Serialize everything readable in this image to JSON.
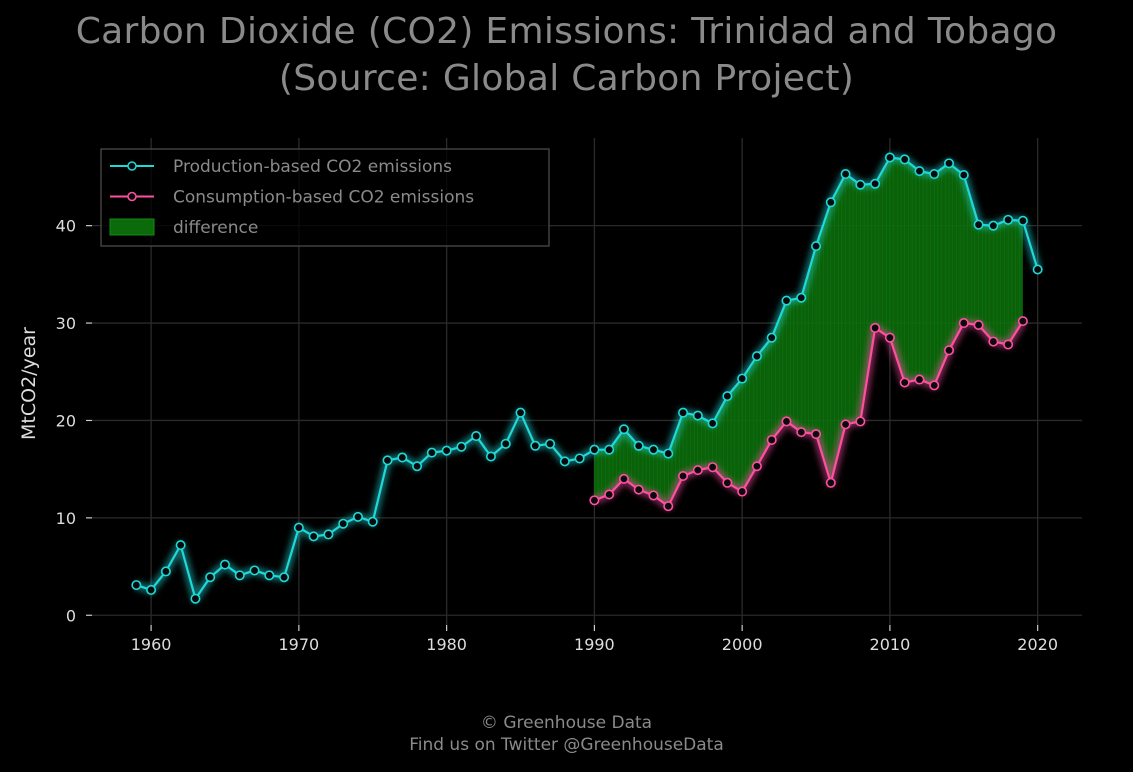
{
  "title_line1": "Carbon Dioxide (CO2) Emissions: Trinidad and Tobago",
  "title_line2": "(Source: Global Carbon Project)",
  "footer_line1": "© Greenhouse Data",
  "footer_line2": "Find us on Twitter @GreenhouseData",
  "colors": {
    "background": "#000000",
    "production": "#1fd8d8",
    "consumption": "#ff4fa3",
    "difference": "#0b6b0b",
    "grid": "#2a2a2a",
    "text": "#dddddd",
    "muted_text": "#8a8a8a"
  },
  "chart_data": {
    "type": "line",
    "title": "Carbon Dioxide (CO2) Emissions: Trinidad and Tobago (Source: Global Carbon Project)",
    "xlabel": "",
    "ylabel": "MtCO2/year",
    "xlim": [
      1956,
      2023
    ],
    "ylim": [
      -1,
      49
    ],
    "x_ticks": [
      "1960",
      "1970",
      "1980",
      "1990",
      "2000",
      "2010",
      "2020"
    ],
    "y_ticks": [
      "0",
      "10",
      "20",
      "30",
      "40"
    ],
    "grid": true,
    "legend_position": "top-left",
    "series": [
      {
        "name": "Production-based CO2 emissions",
        "x": [
          1959,
          1960,
          1961,
          1962,
          1963,
          1964,
          1965,
          1966,
          1967,
          1968,
          1969,
          1970,
          1971,
          1972,
          1973,
          1974,
          1975,
          1976,
          1977,
          1978,
          1979,
          1980,
          1981,
          1982,
          1983,
          1984,
          1985,
          1986,
          1987,
          1988,
          1989,
          1990,
          1991,
          1992,
          1993,
          1994,
          1995,
          1996,
          1997,
          1998,
          1999,
          2000,
          2001,
          2002,
          2003,
          2004,
          2005,
          2006,
          2007,
          2008,
          2009,
          2010,
          2011,
          2012,
          2013,
          2014,
          2015,
          2016,
          2017,
          2018,
          2019,
          2020
        ],
        "y": [
          3.1,
          2.6,
          4.5,
          7.2,
          1.7,
          3.9,
          5.2,
          4.1,
          4.6,
          4.1,
          3.9,
          9.0,
          8.1,
          8.3,
          9.4,
          10.1,
          9.6,
          15.9,
          16.2,
          15.3,
          16.7,
          16.9,
          17.3,
          18.4,
          16.3,
          17.6,
          20.8,
          17.4,
          17.6,
          15.8,
          16.1,
          17.0,
          17.0,
          19.1,
          17.4,
          17.0,
          16.6,
          20.8,
          20.5,
          19.7,
          22.5,
          24.3,
          26.6,
          28.5,
          32.3,
          32.6,
          37.9,
          42.4,
          45.3,
          44.2,
          44.3,
          47.0,
          46.8,
          45.6,
          45.3,
          46.4,
          45.2,
          40.1,
          40.0,
          40.6,
          40.5,
          35.5
        ]
      },
      {
        "name": "Consumption-based CO2 emissions",
        "x": [
          1990,
          1991,
          1992,
          1993,
          1994,
          1995,
          1996,
          1997,
          1998,
          1999,
          2000,
          2001,
          2002,
          2003,
          2004,
          2005,
          2006,
          2007,
          2008,
          2009,
          2010,
          2011,
          2012,
          2013,
          2014,
          2015,
          2016,
          2017,
          2018,
          2019
        ],
        "y": [
          11.8,
          12.4,
          14.0,
          12.9,
          12.3,
          11.2,
          14.3,
          14.9,
          15.2,
          13.6,
          12.7,
          15.3,
          18.0,
          19.9,
          18.8,
          18.6,
          13.6,
          19.6,
          19.9,
          29.5,
          28.5,
          23.9,
          24.2,
          23.6,
          27.2,
          30.0,
          29.8,
          28.1,
          27.8,
          30.2
        ]
      }
    ],
    "difference": {
      "name": "difference",
      "x_range": [
        1990,
        2019
      ]
    }
  }
}
